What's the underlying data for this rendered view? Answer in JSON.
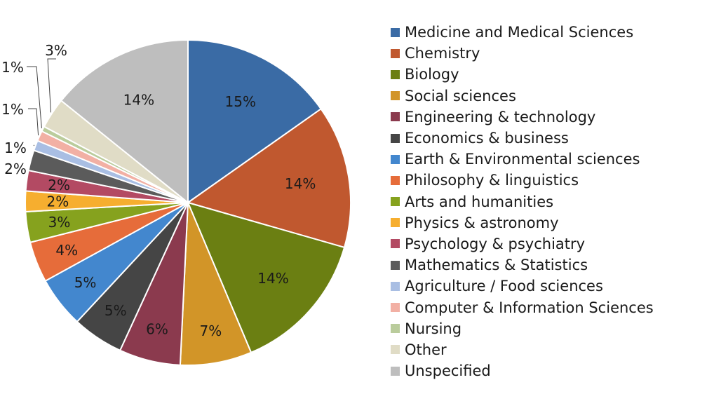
{
  "chart_data": {
    "type": "pie",
    "title": "",
    "slices": [
      {
        "label": "Medicine and Medical Sciences",
        "value": 15,
        "display": "15%",
        "color": "#3A6BA5"
      },
      {
        "label": "Chemistry",
        "value": 14,
        "display": "14%",
        "color": "#C0582F"
      },
      {
        "label": "Biology",
        "value": 14,
        "display": "14%",
        "color": "#6B7F12"
      },
      {
        "label": "Social sciences",
        "value": 7,
        "display": "7%",
        "color": "#D29528"
      },
      {
        "label": "Engineering & technology",
        "value": 6,
        "display": "6%",
        "color": "#8B3A4E"
      },
      {
        "label": "Economics & business",
        "value": 5,
        "display": "5%",
        "color": "#454545"
      },
      {
        "label": "Earth & Environmental sciences",
        "value": 5,
        "display": "5%",
        "color": "#4387CE"
      },
      {
        "label": "Philosophy & linguistics",
        "value": 4,
        "display": "4%",
        "color": "#E66C3A"
      },
      {
        "label": "Arts and humanities",
        "value": 3,
        "display": "3%",
        "color": "#86A21E"
      },
      {
        "label": "Physics & astronomy",
        "value": 2,
        "display": "2%",
        "color": "#F6AE2F"
      },
      {
        "label": "Psychology & psychiatry",
        "value": 2,
        "display": "2%",
        "color": "#B34A63"
      },
      {
        "label": "Mathematics & Statistics",
        "value": 2,
        "display": "2%",
        "color": "#5B5B5B"
      },
      {
        "label": "Agriculture / Food sciences",
        "value": 1,
        "display": "1%",
        "color": "#A9BEE3"
      },
      {
        "label": "Computer & Information Sciences",
        "value": 1,
        "display": "1%",
        "color": "#F2B0A4"
      },
      {
        "label": "Nursing",
        "value": 0.5,
        "display": "1%",
        "color": "#BACC9C"
      },
      {
        "label": "Other",
        "value": 3,
        "display": "3%",
        "color": "#E0DCC6"
      },
      {
        "label": "Unspecified",
        "value": 14,
        "display": "14%",
        "color": "#BEBEBE"
      }
    ],
    "legend_position": "right",
    "data_labels": true
  }
}
